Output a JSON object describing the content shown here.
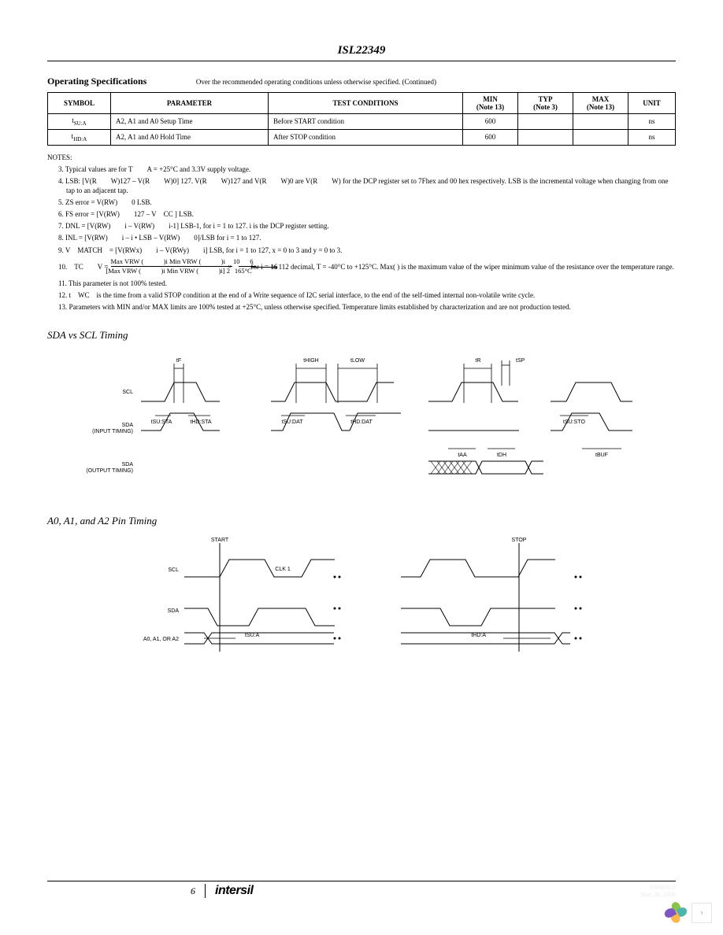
{
  "header": {
    "part_number": "ISL22349"
  },
  "spec": {
    "title": "Operating Specifications",
    "subtitle": "Over the recommended operating conditions unless otherwise specified. (Continued)",
    "columns": {
      "symbol": "SYMBOL",
      "parameter": "PARAMETER",
      "test": "TEST CONDITIONS",
      "min": "MIN",
      "min_note": "(Note 13)",
      "typ": "TYP",
      "typ_note": "(Note 3)",
      "max": "MAX",
      "max_note": "(Note 13)",
      "unit": "UNIT"
    },
    "rows": [
      {
        "symbol_pre": "t",
        "symbol_sub": "SU:A",
        "parameter": "A2, A1 and A0 Setup Time",
        "test": "Before START condition",
        "min": "600",
        "typ": "",
        "max": "",
        "unit": "ns"
      },
      {
        "symbol_pre": "t",
        "symbol_sub": "HD:A",
        "parameter": "A2, A1 and A0 Hold Time",
        "test": "After STOP condition",
        "min": "600",
        "typ": "",
        "max": "",
        "unit": "ns"
      }
    ]
  },
  "notes": {
    "heading": "NOTES:",
    "items": [
      "3. Typical values are for T  A = +25°C and 3.3V supply voltage.",
      "4. LSB: [V(R  W)127 – V(R  W)0] 127. V(R  W)127 and V(R  W)0 are V(R  W) for the DCP register set to 7Fhex and 00 hex respectively. LSB is the incremental voltage when changing from one tap to an adjacent tap.",
      "5. ZS error = V(RW)  0 LSB.",
      "6. FS error = [V(RW)  127 – V CC ] LSB.",
      "7. DNL = [V(RW)  i – V(RW)  i-1] LSB-1, for i = 1 to 127. i is the DCP register setting.",
      "8. INL = [V(RW)  i – i • LSB – V(RW)  0]/LSB for i = 1 to 127.",
      "9. V MATCH = [V(RWx)  i – V(RWy)  i] LSB, for i = 1 to 127, x = 0 to 3 and y = 0 to 3."
    ],
    "note10_label": "10. TC  V =",
    "note10_frac1_top": "Max VRW (   )i  Min VRW (   )i",
    "note10_frac1_bot": "[Max VRW (   )i  Min VRW (   )i] 2",
    "note10_times": "×",
    "note10_frac2_top": "10  6",
    "note10_frac2_bot": "165°C",
    "note10_tail_strike": " for i = 16 ",
    "note10_tail": "to 112 decimal, T = -40°C to +125°C. Max( ) is the maximum value of the wiper minimum value of the resistance over the temperature range.",
    "items_after": [
      "11. This parameter is not 100% tested.",
      "12. t WC is the time from a valid STOP condition at the end of a Write sequence of I2C serial interface, to the end of the self-timed internal non-volatile write cycle.",
      "13. Parameters with MIN and/or MAX limits are 100% tested at +25°C, unless otherwise specified. Temperature limits established by characterization and are not production tested."
    ]
  },
  "timing1": {
    "title": "SDA vs SCL Timing",
    "labels": {
      "scl": "SCL",
      "sda_in": "SDA",
      "sda_in2": "(INPUT TIMING)",
      "sda_out": "SDA",
      "sda_out2": "(OUTPUT TIMING)",
      "tf": "tF",
      "thigh": "tHIGH",
      "tlow": "tLOW",
      "tr": "tR",
      "tsp": "tSP",
      "tsu_sta": "tSU:STA",
      "thd_sta": "tHD:STA",
      "tsu_dat": "tSU:DAT",
      "thd_dat": "tHD:DAT",
      "taa": "tAA",
      "tdh": "tDH",
      "tsu_sto": "tSU:STO",
      "tbuf": "tBUF"
    }
  },
  "timing2": {
    "title": "A0, A1, and A2 Pin Timing",
    "labels": {
      "start": "START",
      "stop": "STOP",
      "scl": "SCL",
      "sda": "SDA",
      "a012": "A0, A1, OR A2",
      "clk1": "CLK 1",
      "tsu_a": "tSU:A",
      "thd_a": "tHD:A"
    }
  },
  "footer": {
    "page": "6",
    "logo": "intersil",
    "doc": "FN6831.0",
    "date": "May 28, 2009"
  },
  "corner": {
    "chevron": "›"
  },
  "colors": {
    "petal1": "#8bc34a",
    "petal2": "#4db6ac",
    "petal3": "#ffb74d",
    "petal4": "#7e57c2"
  }
}
